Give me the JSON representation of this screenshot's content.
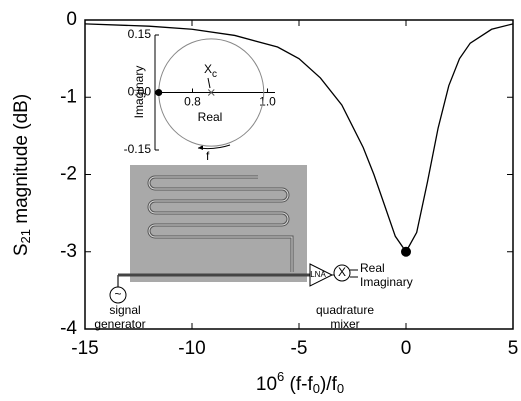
{
  "chart_data": [
    {
      "type": "line",
      "xlabel": [
        "10",
        "6",
        " (f-f",
        "0",
        ")/f",
        "0"
      ],
      "ylabel": [
        "S",
        "21",
        " magnitude (dB)"
      ],
      "x": [
        -15,
        -12,
        -10,
        -8,
        -6,
        -5,
        -4,
        -3,
        -2,
        -1.5,
        -1,
        -0.5,
        0,
        0.5,
        1,
        1.5,
        2,
        2.5,
        3,
        4,
        5
      ],
      "series": [
        {
          "color": "#000000",
          "values": [
            -0.05,
            -0.08,
            -0.12,
            -0.2,
            -0.35,
            -0.5,
            -0.75,
            -1.1,
            -1.65,
            -2.0,
            -2.4,
            -2.8,
            -3.0,
            -2.75,
            -2.1,
            -1.4,
            -0.85,
            -0.5,
            -0.3,
            -0.12,
            -0.05
          ]
        }
      ],
      "marker_x": 0,
      "marker_y": -3,
      "xlim": [
        -15,
        5
      ],
      "xticks": [
        -15,
        -10,
        -5,
        0,
        5
      ],
      "ylim": [
        -4,
        0
      ],
      "yticks": [
        0,
        -1,
        -2,
        -3,
        -4
      ]
    },
    {
      "type": "circle",
      "xlabel": "Real",
      "ylabel": "Imaginary",
      "center": [
        0.85,
        0
      ],
      "radius": 0.14,
      "point": [
        0.71,
        0
      ],
      "center_label": "X",
      "center_label_sub": "c",
      "direction_label": "f",
      "xlim": [
        0.7,
        1.02
      ],
      "xticks": [
        0.8,
        {
          "value": 1,
          "label": "1.0"
        }
      ],
      "ylim": [
        -0.15,
        0.15
      ],
      "yticks": [
        0.15,
        {
          "value": 0,
          "label": "0.00"
        },
        -0.15
      ]
    }
  ],
  "schematic": {
    "source_symbol": "~",
    "source": [
      "signal",
      "generator"
    ],
    "amp": "LNA",
    "mixer_symbol": "X",
    "outputs": [
      "Real",
      "Imaginary"
    ],
    "mixer": [
      "quadrature",
      "mixer"
    ]
  }
}
